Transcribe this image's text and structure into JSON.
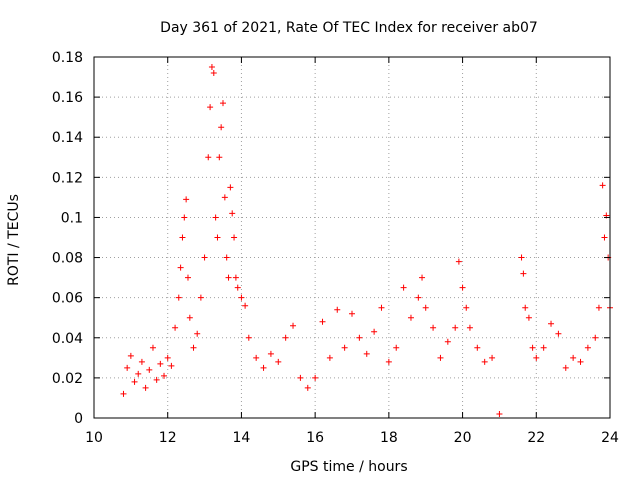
{
  "chart_data": {
    "type": "scatter",
    "title": "Day 361 of 2021, Rate Of TEC Index for receiver ab07",
    "xlabel": "GPS time / hours",
    "ylabel": "ROTI / TECUs",
    "xlim": [
      10,
      24
    ],
    "ylim": [
      0,
      0.18
    ],
    "xticks": [
      "10",
      "12",
      "14",
      "16",
      "18",
      "20",
      "22",
      "24"
    ],
    "yticks": [
      "0",
      "0.02",
      "0.04",
      "0.06",
      "0.08",
      "0.1",
      "0.12",
      "0.14",
      "0.16",
      "0.18"
    ],
    "grid": true,
    "marker": "+",
    "series_color": "#ff0000",
    "series": [
      {
        "name": "ROTI",
        "points": [
          [
            10.8,
            0.012
          ],
          [
            10.9,
            0.025
          ],
          [
            11.0,
            0.031
          ],
          [
            11.1,
            0.018
          ],
          [
            11.2,
            0.022
          ],
          [
            11.3,
            0.028
          ],
          [
            11.4,
            0.015
          ],
          [
            11.5,
            0.024
          ],
          [
            11.6,
            0.035
          ],
          [
            11.7,
            0.019
          ],
          [
            11.8,
            0.027
          ],
          [
            11.9,
            0.021
          ],
          [
            12.0,
            0.03
          ],
          [
            12.1,
            0.026
          ],
          [
            12.2,
            0.045
          ],
          [
            12.3,
            0.06
          ],
          [
            12.35,
            0.075
          ],
          [
            12.4,
            0.09
          ],
          [
            12.45,
            0.1
          ],
          [
            12.5,
            0.109
          ],
          [
            12.55,
            0.07
          ],
          [
            12.6,
            0.05
          ],
          [
            12.7,
            0.035
          ],
          [
            12.8,
            0.042
          ],
          [
            12.9,
            0.06
          ],
          [
            13.0,
            0.08
          ],
          [
            13.1,
            0.13
          ],
          [
            13.15,
            0.155
          ],
          [
            13.2,
            0.175
          ],
          [
            13.25,
            0.172
          ],
          [
            13.3,
            0.1
          ],
          [
            13.35,
            0.09
          ],
          [
            13.4,
            0.13
          ],
          [
            13.45,
            0.145
          ],
          [
            13.5,
            0.157
          ],
          [
            13.55,
            0.11
          ],
          [
            13.6,
            0.08
          ],
          [
            13.65,
            0.07
          ],
          [
            13.7,
            0.115
          ],
          [
            13.75,
            0.102
          ],
          [
            13.8,
            0.09
          ],
          [
            13.85,
            0.07
          ],
          [
            13.9,
            0.065
          ],
          [
            14.0,
            0.06
          ],
          [
            14.1,
            0.056
          ],
          [
            14.2,
            0.04
          ],
          [
            14.4,
            0.03
          ],
          [
            14.6,
            0.025
          ],
          [
            14.8,
            0.032
          ],
          [
            15.0,
            0.028
          ],
          [
            15.2,
            0.04
          ],
          [
            15.4,
            0.046
          ],
          [
            15.6,
            0.02
          ],
          [
            15.8,
            0.015
          ],
          [
            16.0,
            0.02
          ],
          [
            16.2,
            0.048
          ],
          [
            16.4,
            0.03
          ],
          [
            16.6,
            0.054
          ],
          [
            16.8,
            0.035
          ],
          [
            17.0,
            0.052
          ],
          [
            17.2,
            0.04
          ],
          [
            17.4,
            0.032
          ],
          [
            17.6,
            0.043
          ],
          [
            17.8,
            0.055
          ],
          [
            18.0,
            0.028
          ],
          [
            18.2,
            0.035
          ],
          [
            18.4,
            0.065
          ],
          [
            18.6,
            0.05
          ],
          [
            18.8,
            0.06
          ],
          [
            18.9,
            0.07
          ],
          [
            19.0,
            0.055
          ],
          [
            19.2,
            0.045
          ],
          [
            19.4,
            0.03
          ],
          [
            19.6,
            0.038
          ],
          [
            19.8,
            0.045
          ],
          [
            19.9,
            0.078
          ],
          [
            20.0,
            0.065
          ],
          [
            20.1,
            0.055
          ],
          [
            20.2,
            0.045
          ],
          [
            20.4,
            0.035
          ],
          [
            20.6,
            0.028
          ],
          [
            20.8,
            0.03
          ],
          [
            21.0,
            0.002
          ],
          [
            21.6,
            0.08
          ],
          [
            21.65,
            0.072
          ],
          [
            21.7,
            0.055
          ],
          [
            21.8,
            0.05
          ],
          [
            21.9,
            0.035
          ],
          [
            22.0,
            0.03
          ],
          [
            22.2,
            0.035
          ],
          [
            22.4,
            0.047
          ],
          [
            22.6,
            0.042
          ],
          [
            22.8,
            0.025
          ],
          [
            23.0,
            0.03
          ],
          [
            23.2,
            0.028
          ],
          [
            23.4,
            0.035
          ],
          [
            23.6,
            0.04
          ],
          [
            23.7,
            0.055
          ],
          [
            23.8,
            0.116
          ],
          [
            23.85,
            0.09
          ],
          [
            23.9,
            0.101
          ],
          [
            23.95,
            0.08
          ],
          [
            24.0,
            0.055
          ]
        ]
      }
    ]
  }
}
